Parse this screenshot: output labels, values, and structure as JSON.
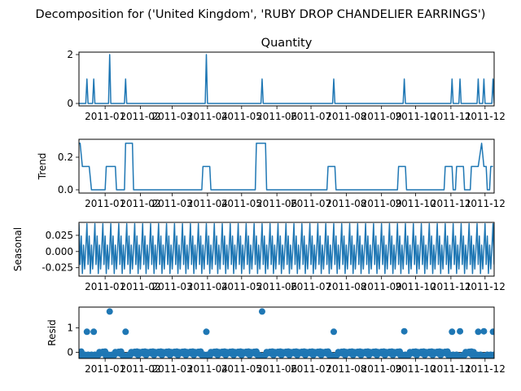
{
  "suptitle": "Decomposition for ('United Kingdom', 'RUBY DROP CHANDELIER EARRINGS')",
  "x_tick_labels": [
    "2011-01",
    "2011-02",
    "2011-03",
    "2011-04",
    "2011-05",
    "2011-06",
    "2011-07",
    "2011-08",
    "2011-09",
    "2011-10",
    "2011-11",
    "2011-12"
  ],
  "colors": {
    "series": "#1f77b4"
  },
  "chart_data": [
    {
      "type": "line",
      "title": "Quantity",
      "ylabel": "",
      "ylim": [
        -0.1,
        2.1
      ],
      "yticks": [
        0,
        2
      ],
      "x_dates": [
        "2010-12-16",
        "2010-12-22",
        "2011-01-05",
        "2011-01-19",
        "2011-03-31",
        "2011-05-19",
        "2011-07-21",
        "2011-09-21",
        "2011-11-02",
        "2011-11-09",
        "2011-11-25",
        "2011-11-30",
        "2011-12-08"
      ],
      "values": [
        1,
        1,
        2,
        1,
        2,
        1,
        1,
        1,
        1,
        1,
        1,
        1,
        1
      ],
      "note_values": "non-zero observations; all other periods are 0"
    },
    {
      "type": "line",
      "title": "",
      "ylabel": "Trend",
      "ylim": [
        -0.02,
        0.31
      ],
      "yticks": [
        0.0,
        0.2
      ],
      "x_dates": [
        "2010-12-09",
        "2010-12-10",
        "2010-12-12",
        "2010-12-18",
        "2010-12-20",
        "2011-01-01",
        "2011-01-02",
        "2011-01-10",
        "2011-01-11",
        "2011-01-14",
        "2011-01-15",
        "2011-01-18",
        "2011-01-19",
        "2011-01-25",
        "2011-01-26",
        "2011-03-27",
        "2011-03-28",
        "2011-04-03",
        "2011-04-04",
        "2011-05-13",
        "2011-05-14",
        "2011-05-22",
        "2011-05-23",
        "2011-07-15",
        "2011-07-16",
        "2011-07-22",
        "2011-07-23",
        "2011-09-15",
        "2011-09-16",
        "2011-09-22",
        "2011-09-23",
        "2011-10-26",
        "2011-10-27",
        "2011-11-02",
        "2011-11-03",
        "2011-11-05",
        "2011-11-06",
        "2011-11-12",
        "2011-11-13",
        "2011-11-18",
        "2011-11-19",
        "2011-11-22",
        "2011-11-25",
        "2011-11-28",
        "2011-11-30",
        "2011-12-02",
        "2011-12-03",
        "2011-12-05",
        "2011-12-06",
        "2011-12-08"
      ],
      "values": [
        0.2857,
        0.2857,
        0.1429,
        0.1429,
        0.0,
        0.0,
        0.1429,
        0.1429,
        0.0,
        0.0,
        0.0,
        0.0,
        0.2857,
        0.2857,
        0.0,
        0.0,
        0.1429,
        0.1429,
        0.0,
        0.0,
        0.2857,
        0.2857,
        0.0,
        0.0,
        0.1429,
        0.1429,
        0.0,
        0.0,
        0.1429,
        0.1429,
        0.0,
        0.0,
        0.1429,
        0.1429,
        0.0,
        0.0,
        0.1429,
        0.1429,
        0.0,
        0.0,
        0.1429,
        0.1429,
        0.1429,
        0.2857,
        0.1429,
        0.1429,
        0.0,
        0.0,
        0.1429,
        0.1429
      ]
    },
    {
      "type": "line",
      "title": "",
      "ylabel": "Seasonal",
      "ylim": [
        -0.038,
        0.045
      ],
      "yticks": [
        0.025,
        0.0,
        -0.025
      ],
      "x_start": "2010-12-09",
      "x_end": "2011-12-09",
      "period_days": 7,
      "weekly_pattern": [
        0.043,
        -0.02,
        0.024,
        -0.034,
        0.01,
        -0.027,
        0.004
      ],
      "note_values": "weekly seasonal component repeated across the full date range"
    },
    {
      "type": "scatter",
      "title": "",
      "ylabel": "Resid",
      "ylim": [
        -0.25,
        1.85
      ],
      "yticks": [
        0,
        1
      ],
      "x_dates": [
        "2010-12-09",
        "2010-12-16",
        "2010-12-22",
        "2011-01-05",
        "2011-01-19",
        "2011-03-31",
        "2011-05-19",
        "2011-07-21",
        "2011-09-21",
        "2011-11-02",
        "2011-11-09",
        "2011-11-25",
        "2011-11-30",
        "2011-12-08"
      ],
      "values": [
        -0.25,
        0.84,
        0.84,
        1.67,
        0.84,
        0.84,
        1.67,
        0.84,
        0.86,
        0.84,
        0.86,
        0.84,
        0.86,
        0.84
      ],
      "baseline_value": 0.0,
      "note_values": "highlighted residuals; remaining points cluster between -0.25 and 0.05"
    }
  ]
}
